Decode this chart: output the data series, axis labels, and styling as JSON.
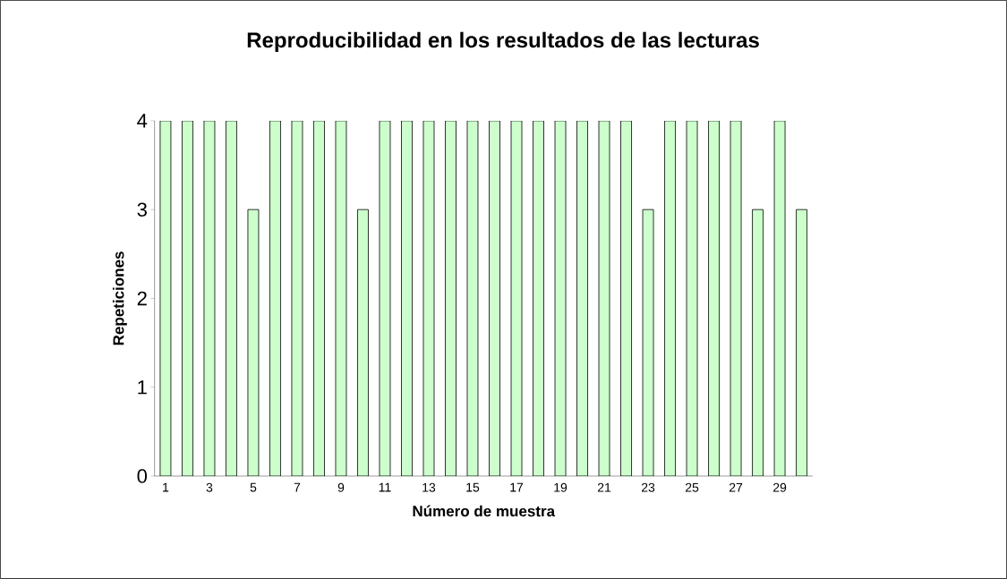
{
  "chart_data": {
    "type": "bar",
    "title": "Reproducibilidad en los resultados de las lecturas",
    "xlabel": "Número de muestra",
    "ylabel": "Repeticiones",
    "categories": [
      "1",
      null,
      "3",
      null,
      "5",
      null,
      "7",
      null,
      "9",
      null,
      "11",
      null,
      "13",
      null,
      "15",
      null,
      "17",
      null,
      "19",
      null,
      "21",
      null,
      "23",
      null,
      "25",
      null,
      "27",
      null,
      "29",
      null
    ],
    "values": [
      4,
      4,
      4,
      4,
      3,
      4,
      4,
      4,
      4,
      3,
      4,
      4,
      4,
      4,
      4,
      4,
      4,
      4,
      4,
      4,
      4,
      4,
      3,
      4,
      4,
      4,
      4,
      3,
      4,
      3
    ],
    "color": "#ccffcc",
    "ylim": [
      0,
      4
    ],
    "yticks": [
      0,
      1,
      2,
      3,
      4
    ],
    "grid": false
  }
}
